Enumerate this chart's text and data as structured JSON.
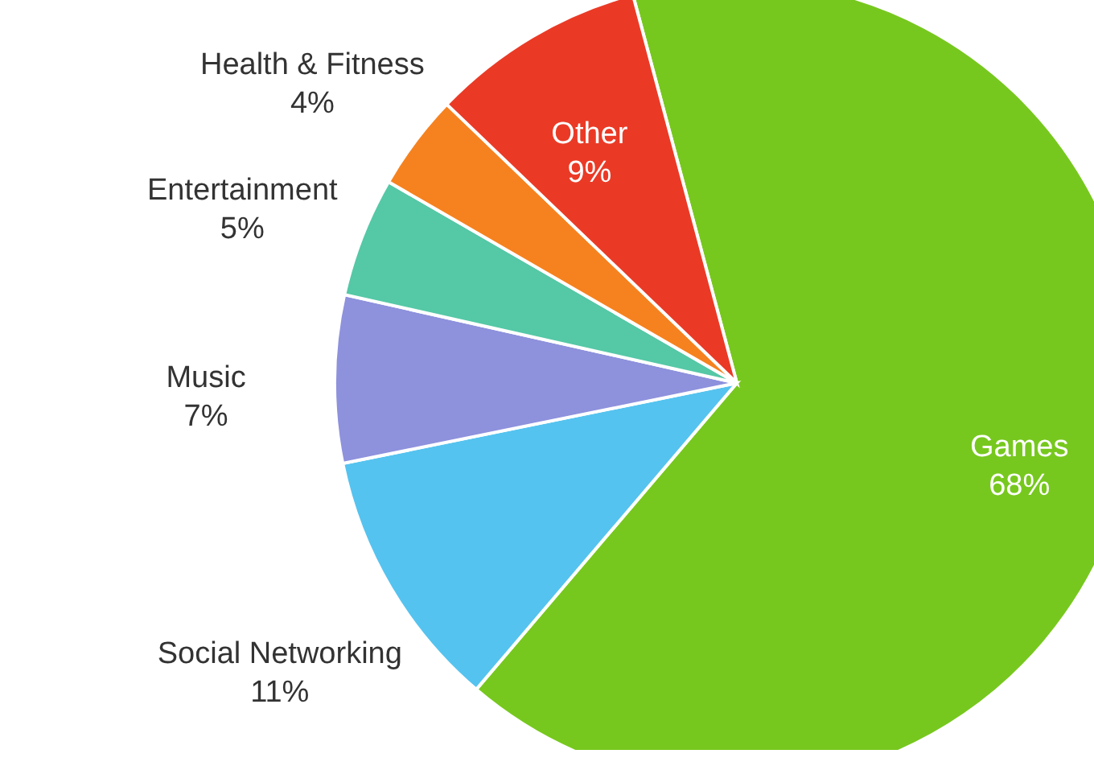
{
  "chart_data": {
    "type": "pie",
    "categories": [
      "Games",
      "Social Networking",
      "Music",
      "Entertainment",
      "Health & Fitness",
      "Other"
    ],
    "values": [
      68,
      11,
      7,
      5,
      4,
      9
    ],
    "value_labels": [
      "68%",
      "11%",
      "7%",
      "5%",
      "4%",
      "9%"
    ],
    "colors": [
      "#77c81e",
      "#55c3ef",
      "#8e91dc",
      "#55c8a6",
      "#f6821f",
      "#ea3a26"
    ]
  }
}
